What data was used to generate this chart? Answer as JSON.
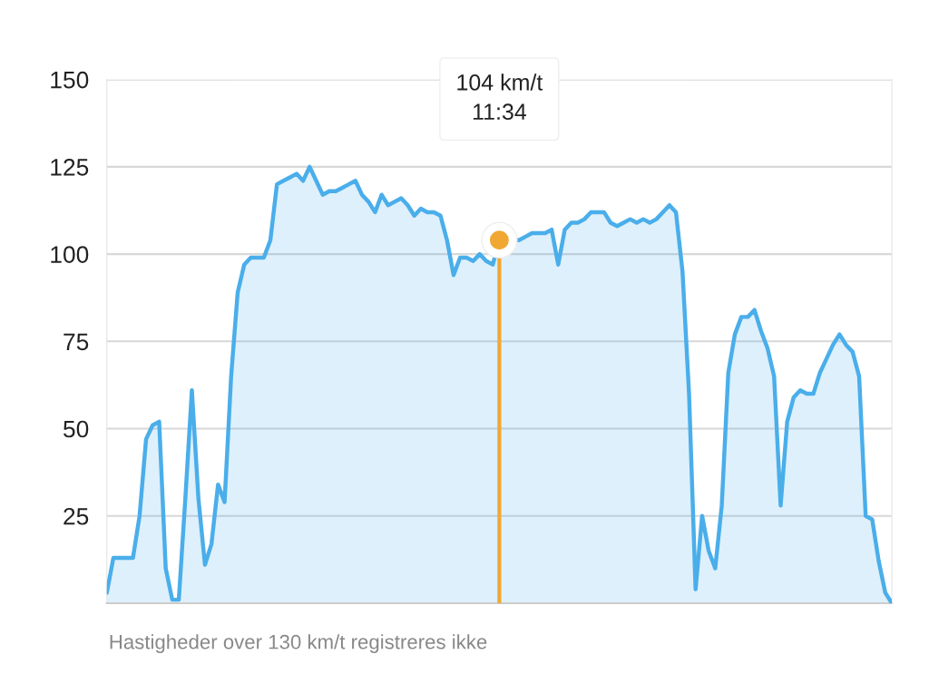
{
  "chart_data": {
    "type": "area",
    "categories": [
      null,
      null,
      null,
      null,
      null,
      null,
      null,
      null,
      null,
      null,
      null,
      null,
      null,
      null,
      null,
      null,
      null,
      null,
      null,
      null,
      null,
      null,
      null,
      null,
      null,
      null,
      null,
      null,
      null,
      null,
      null,
      null,
      null,
      null,
      null,
      null,
      null,
      null,
      null,
      null,
      null,
      null,
      null,
      null,
      null,
      null,
      null,
      null,
      null,
      null,
      null,
      null,
      null,
      null,
      null,
      null,
      null,
      null,
      null,
      null,
      null,
      null,
      null,
      null,
      null,
      null,
      null,
      null,
      null,
      null,
      null,
      null,
      null,
      null,
      null,
      null,
      null,
      null,
      null,
      null,
      null,
      null,
      null,
      null,
      null,
      null,
      null,
      null,
      null,
      null,
      null,
      null,
      null,
      null,
      null,
      null,
      null,
      null,
      null,
      null,
      null,
      null,
      null,
      null,
      null,
      null,
      null,
      null,
      null,
      null,
      null,
      null,
      null,
      null,
      null,
      null,
      null,
      null,
      null,
      null,
      null
    ],
    "series": [
      {
        "color": "#4aaeea",
        "values": [
          3,
          13,
          13,
          13,
          13,
          25,
          47,
          51,
          52,
          10,
          1,
          1,
          30,
          61,
          30,
          11,
          17,
          34,
          29,
          65,
          89,
          97,
          99,
          99,
          99,
          104,
          120,
          121,
          122,
          123,
          121,
          125,
          121,
          117,
          118,
          118,
          119,
          120,
          121,
          117,
          115,
          112,
          117,
          114,
          115,
          116,
          114,
          111,
          113,
          112,
          112,
          111,
          104,
          94,
          99,
          99,
          98,
          100,
          98,
          97,
          104,
          103,
          104,
          104,
          105,
          106,
          106,
          106,
          107,
          97,
          107,
          109,
          109,
          110,
          112,
          112,
          112,
          109,
          108,
          109,
          110,
          109,
          110,
          109,
          110,
          112,
          114,
          112,
          95,
          60,
          4,
          25,
          15,
          10,
          28,
          66,
          77,
          82,
          82,
          84,
          78,
          73,
          65,
          28,
          52,
          59,
          61,
          60,
          60,
          66,
          70,
          74,
          77,
          74,
          72,
          65,
          25,
          24,
          12,
          3,
          0
        ]
      },
      {
        "type": "lollipop",
        "color": "#f0a832",
        "marker": "circle",
        "values": [
          null,
          null,
          null,
          null,
          null,
          null,
          null,
          null,
          null,
          null,
          null,
          null,
          null,
          null,
          null,
          null,
          null,
          null,
          null,
          null,
          null,
          null,
          null,
          null,
          null,
          null,
          null,
          null,
          null,
          null,
          null,
          null,
          null,
          null,
          null,
          null,
          null,
          null,
          null,
          null,
          null,
          null,
          null,
          null,
          null,
          null,
          null,
          null,
          null,
          null,
          null,
          null,
          null,
          null,
          null,
          null,
          null,
          null,
          null,
          null,
          104,
          null,
          null,
          null,
          null,
          null,
          null,
          null,
          null,
          null,
          null,
          null,
          null,
          null,
          null,
          null,
          null,
          null,
          null,
          null,
          null,
          null,
          null,
          null,
          null,
          null,
          null,
          null,
          null,
          null,
          null,
          null,
          null,
          null,
          null,
          null,
          null,
          null,
          null,
          null,
          null,
          null,
          null,
          null,
          null,
          null,
          null,
          null,
          null,
          null,
          null,
          null,
          null,
          null,
          null,
          null,
          null,
          null,
          null,
          null,
          null
        ]
      }
    ],
    "ylim": [
      0,
      150
    ],
    "yticks": [
      {
        "value": 0,
        "label": null
      },
      25,
      50,
      75,
      100,
      125,
      150
    ],
    "tick_labels": "y",
    "grid": "y",
    "legend": false,
    "annotations": [
      "104 km/t\n11:34",
      "Hastigheder over 130 km/t registreres ikke"
    ]
  }
}
